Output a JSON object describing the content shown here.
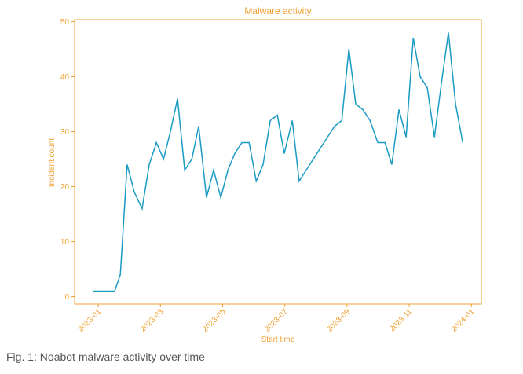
{
  "chart_data": {
    "type": "line",
    "title": "Malware activity",
    "xlabel": "Start time",
    "ylabel": "Incident count",
    "x": [
      -0.18,
      0.53,
      0.71,
      0.93,
      1.16,
      1.41,
      1.64,
      1.87,
      2.1,
      2.32,
      2.55,
      2.78,
      3.01,
      3.23,
      3.48,
      3.71,
      3.94,
      4.17,
      4.39,
      4.62,
      4.85,
      5.08,
      5.3,
      5.53,
      5.76,
      5.98,
      6.24,
      6.46,
      7.6,
      7.83,
      8.06,
      8.28,
      8.51,
      8.74,
      8.99,
      9.22,
      9.44,
      9.67,
      9.9,
      10.13,
      10.35,
      10.58,
      10.81,
      11.04,
      11.26,
      11.49,
      11.72
    ],
    "values": [
      1,
      1,
      4,
      24,
      19,
      16,
      24,
      28,
      25,
      30,
      36,
      23,
      25,
      31,
      18,
      23,
      18,
      23,
      26,
      28,
      28,
      21,
      24,
      32,
      33,
      26,
      32,
      21,
      31,
      32,
      45,
      35,
      34,
      32,
      28,
      28,
      24,
      34,
      29,
      47,
      40,
      38,
      29,
      39,
      48,
      35,
      28
    ],
    "color": "#1a9bc4",
    "xlim": [
      -0.76,
      12.32
    ],
    "xticks": [
      {
        "value": 0,
        "label": "2023-01"
      },
      {
        "value": 2,
        "label": "2023-03"
      },
      {
        "value": 4,
        "label": "2023-05"
      },
      {
        "value": 6,
        "label": "2023-07"
      },
      {
        "value": 8,
        "label": "2023-09"
      },
      {
        "value": 10,
        "label": "2023-11"
      },
      {
        "value": 12,
        "label": "2024-01"
      }
    ],
    "ylim": [
      -1.35,
      50.35
    ],
    "yticks": [
      0,
      10,
      20,
      30,
      40,
      50
    ],
    "grid": false
  },
  "caption": "Fig. 1: Noabot malware activity over time"
}
